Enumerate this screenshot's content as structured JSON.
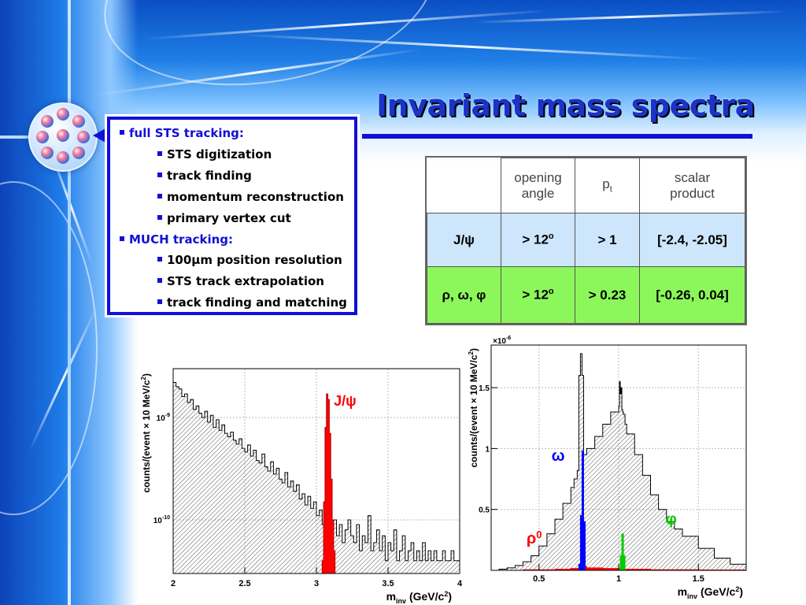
{
  "title": "Invariant mass spectra",
  "bullets": [
    {
      "text": "full STS tracking:",
      "level": 1,
      "color": "#1010d8"
    },
    {
      "text": "STS digitization",
      "level": 2
    },
    {
      "text": "track finding",
      "level": 2
    },
    {
      "text": "momentum reconstruction",
      "level": 2
    },
    {
      "text": "primary vertex cut",
      "level": 2
    },
    {
      "text": "MUCH tracking:",
      "level": 1,
      "color": "#1010d8"
    },
    {
      "text": "100µm position resolution",
      "level": 2
    },
    {
      "text": "STS track extrapolation",
      "level": 2
    },
    {
      "text": "track finding and matching",
      "level": 2
    }
  ],
  "table": {
    "headers": [
      "",
      "opening angle",
      "pt",
      "scalar product"
    ],
    "header_line1": [
      "opening",
      "",
      "scalar"
    ],
    "header_line2": [
      "angle",
      "",
      "product"
    ],
    "pt_main": "p",
    "pt_sub": "t",
    "rows": [
      {
        "label": "J/ψ",
        "angle": "> 12",
        "angle_sup": "o",
        "pt": "> 1",
        "scalar": "[-2.4, -2.05]",
        "color": "#cde6fb"
      },
      {
        "label": "ρ, ω, φ",
        "angle": "> 12",
        "angle_sup": "o",
        "pt": "> 0.23",
        "scalar": "[-0.26, 0.04]",
        "color": "#8cf75a"
      }
    ]
  },
  "chart_data": [
    {
      "type": "histogram",
      "xlabel": "m",
      "xlabel_sub": "inv",
      "xlabel_unit": "(GeV/c",
      "xlabel_sup": "2",
      "xlabel_end": ")",
      "ylabel": "counts/(event × 10 MeV/c",
      "ylabel_sup": "2",
      "ylabel_end": ")",
      "xlim": [
        2,
        4
      ],
      "x_ticks": [
        2,
        2.5,
        3,
        3.5,
        4
      ],
      "x_tick_labels": [
        "2",
        "2.5",
        "3",
        "3.5",
        "4"
      ],
      "y_scale": "log",
      "ylim": [
        3e-11,
        3e-09
      ],
      "y_ticks": [
        1e-09,
        1e-10
      ],
      "y_tick_labels": [
        {
          "base": "10",
          "exp": "-9"
        },
        {
          "base": "10",
          "exp": "-10"
        }
      ],
      "grid": true,
      "series": [
        {
          "name": "background",
          "style": "hatched",
          "bin_width": 0.02,
          "x_start": 2.0,
          "values": [
            2.2e-09,
            2e-09,
            1.9e-09,
            1.6e-09,
            1.7e-09,
            1.4e-09,
            1.5e-09,
            1.2e-09,
            1.3e-09,
            1.1e-09,
            1e-09,
            1.15e-09,
            9e-10,
            1.05e-09,
            8e-10,
            9.5e-10,
            7.5e-10,
            8.5e-10,
            7e-10,
            6.5e-10,
            7.2e-10,
            6e-10,
            5.5e-10,
            6.2e-10,
            5e-10,
            4.6e-10,
            5.4e-10,
            4.2e-10,
            4.8e-10,
            3.8e-10,
            3.6e-10,
            4.4e-10,
            3.3e-10,
            3e-10,
            3.7e-10,
            2.8e-10,
            3.2e-10,
            2.5e-10,
            2.3e-10,
            2.9e-10,
            2.1e-10,
            2.4e-10,
            1.9e-10,
            2.2e-10,
            1.6e-10,
            1.8e-10,
            1.4e-10,
            1.7e-10,
            1.3e-10,
            1.5e-10,
            1.1e-10,
            1.25e-10,
            9e-11,
            1.05e-10,
            1.2e-10,
            8e-11,
            1e-10,
            7e-11,
            9e-11,
            6e-11,
            8e-11,
            1e-10,
            7e-11,
            6e-11,
            9e-11,
            5e-11,
            7e-11,
            6e-11,
            1.1e-10,
            5e-11,
            6e-11,
            8e-11,
            5e-11,
            7e-11,
            4e-11,
            6e-11,
            5e-11,
            8e-11,
            4e-11,
            5e-11,
            7e-11,
            4e-11,
            5e-11,
            6e-11,
            4e-11,
            5e-11,
            4e-11,
            6e-11,
            4e-11,
            5e-11,
            4e-11,
            5e-11,
            4e-11,
            4e-11,
            5e-11,
            4e-11,
            4e-11,
            5e-11,
            4e-11,
            4e-11
          ]
        },
        {
          "name": "J/ψ",
          "style": "filled",
          "color": "#ff0000",
          "bin_width": 0.01,
          "x_start": 3.04,
          "values": [
            4e-11,
            1.5e-10,
            8e-10,
            1.7e-09,
            1.5e-09,
            7e-10,
            2.5e-10,
            1e-10,
            5e-11
          ]
        }
      ],
      "annotations": [
        {
          "text": "J/ψ",
          "x": 3.2,
          "y": 1.3e-09,
          "color": "#ff0000"
        }
      ]
    },
    {
      "type": "histogram",
      "xlabel": "m",
      "xlabel_sub": "inv",
      "xlabel_unit": "(GeV/c",
      "xlabel_sup": "2",
      "xlabel_end": ")",
      "ylabel": "counts/(event × 10 MeV/c",
      "ylabel_sup": "2",
      "ylabel_end": ")",
      "y_multiplier": "×10",
      "y_multiplier_exp": "-6",
      "xlim": [
        0.2,
        1.8
      ],
      "ylim": [
        0,
        1.85
      ],
      "x_ticks": [
        0.5,
        1,
        1.5
      ],
      "x_tick_labels": [
        "0.5",
        "1",
        "1.5"
      ],
      "y_ticks": [
        0.5,
        1,
        1.5
      ],
      "y_tick_labels": [
        "0.5",
        "1",
        "1.5"
      ],
      "grid": true,
      "series": [
        {
          "name": "total",
          "style": "hatched",
          "x": [
            0.2,
            0.25,
            0.3,
            0.35,
            0.4,
            0.45,
            0.5,
            0.55,
            0.6,
            0.65,
            0.7,
            0.72,
            0.74,
            0.75,
            0.76,
            0.77,
            0.78,
            0.79,
            0.8,
            0.85,
            0.9,
            0.95,
            1.0,
            1.005,
            1.01,
            1.015,
            1.02,
            1.025,
            1.03,
            1.04,
            1.05,
            1.1,
            1.15,
            1.2,
            1.25,
            1.3,
            1.35,
            1.4,
            1.5,
            1.6,
            1.7,
            1.8
          ],
          "values": [
            0.0,
            0.01,
            0.02,
            0.04,
            0.07,
            0.12,
            0.2,
            0.3,
            0.42,
            0.55,
            0.68,
            0.75,
            0.82,
            1.6,
            1.78,
            1.6,
            0.95,
            0.95,
            1.0,
            1.1,
            1.2,
            1.3,
            1.35,
            1.55,
            1.45,
            1.5,
            1.32,
            1.3,
            1.28,
            1.2,
            1.12,
            0.95,
            0.78,
            0.62,
            0.5,
            0.4,
            0.34,
            0.28,
            0.18,
            0.1,
            0.05,
            0.02
          ]
        },
        {
          "name": "ω",
          "style": "filled",
          "color": "#0000ff",
          "x": [
            0.75,
            0.76,
            0.77,
            0.78,
            0.79
          ],
          "values": [
            0.05,
            0.45,
            0.98,
            0.4,
            0.04
          ]
        },
        {
          "name": "φ",
          "style": "filled",
          "color": "#00cc00",
          "x": [
            1.0,
            1.01,
            1.02,
            1.03,
            1.04
          ],
          "values": [
            0.02,
            0.12,
            0.3,
            0.12,
            0.02
          ]
        },
        {
          "name": "ρ0",
          "style": "filled",
          "color": "#ff0000",
          "x": [
            0.2,
            0.4,
            0.6,
            0.7,
            0.75,
            0.8,
            0.9,
            1.0,
            1.2,
            1.5,
            1.8
          ],
          "values": [
            0,
            0.005,
            0.01,
            0.015,
            0.03,
            0.02,
            0.015,
            0.01,
            0.005,
            0.003,
            0
          ]
        }
      ],
      "annotations": [
        {
          "text": "ω",
          "x": 0.62,
          "y": 0.9,
          "color": "#0000ff"
        },
        {
          "text": "φ",
          "x": 1.33,
          "y": 0.38,
          "color": "#00cc00"
        },
        {
          "text": "ρ",
          "sup": "0",
          "x": 0.47,
          "y": 0.22,
          "color": "#ff0000"
        }
      ]
    }
  ]
}
